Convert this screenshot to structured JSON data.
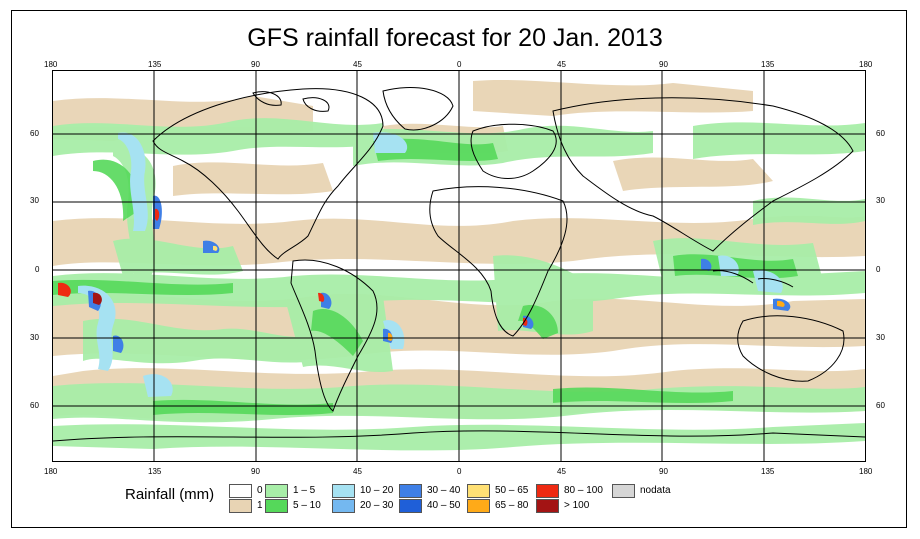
{
  "title": "GFS rainfall forecast for 20 Jan. 2013",
  "longitude_ticks": [
    "180",
    "135",
    "90",
    "45",
    "0",
    "45",
    "90",
    "135",
    "180"
  ],
  "latitude_ticks": [
    "60",
    "30",
    "0",
    "30",
    "60"
  ],
  "legend": {
    "title": "Rainfall (mm)",
    "items": [
      {
        "label": "0",
        "color": "#ffffff"
      },
      {
        "label": "1",
        "color": "#e8d4b4"
      },
      {
        "label": "1 – 5",
        "color": "#a8eea8"
      },
      {
        "label": "5 – 10",
        "color": "#55d85a"
      },
      {
        "label": "10 – 20",
        "color": "#a6e2f2"
      },
      {
        "label": "20 – 30",
        "color": "#74b8f0"
      },
      {
        "label": "30 – 40",
        "color": "#3f7fe6"
      },
      {
        "label": "40 – 50",
        "color": "#1f5fd8"
      },
      {
        "label": "50 – 65",
        "color": "#ffe074"
      },
      {
        "label": "65 – 80",
        "color": "#ffaa18"
      },
      {
        "label": "80 – 100",
        "color": "#ee2a12"
      },
      {
        "label": "> 100",
        "color": "#a31414"
      },
      {
        "label": "nodata",
        "color": "#d6d6d6"
      }
    ]
  }
}
